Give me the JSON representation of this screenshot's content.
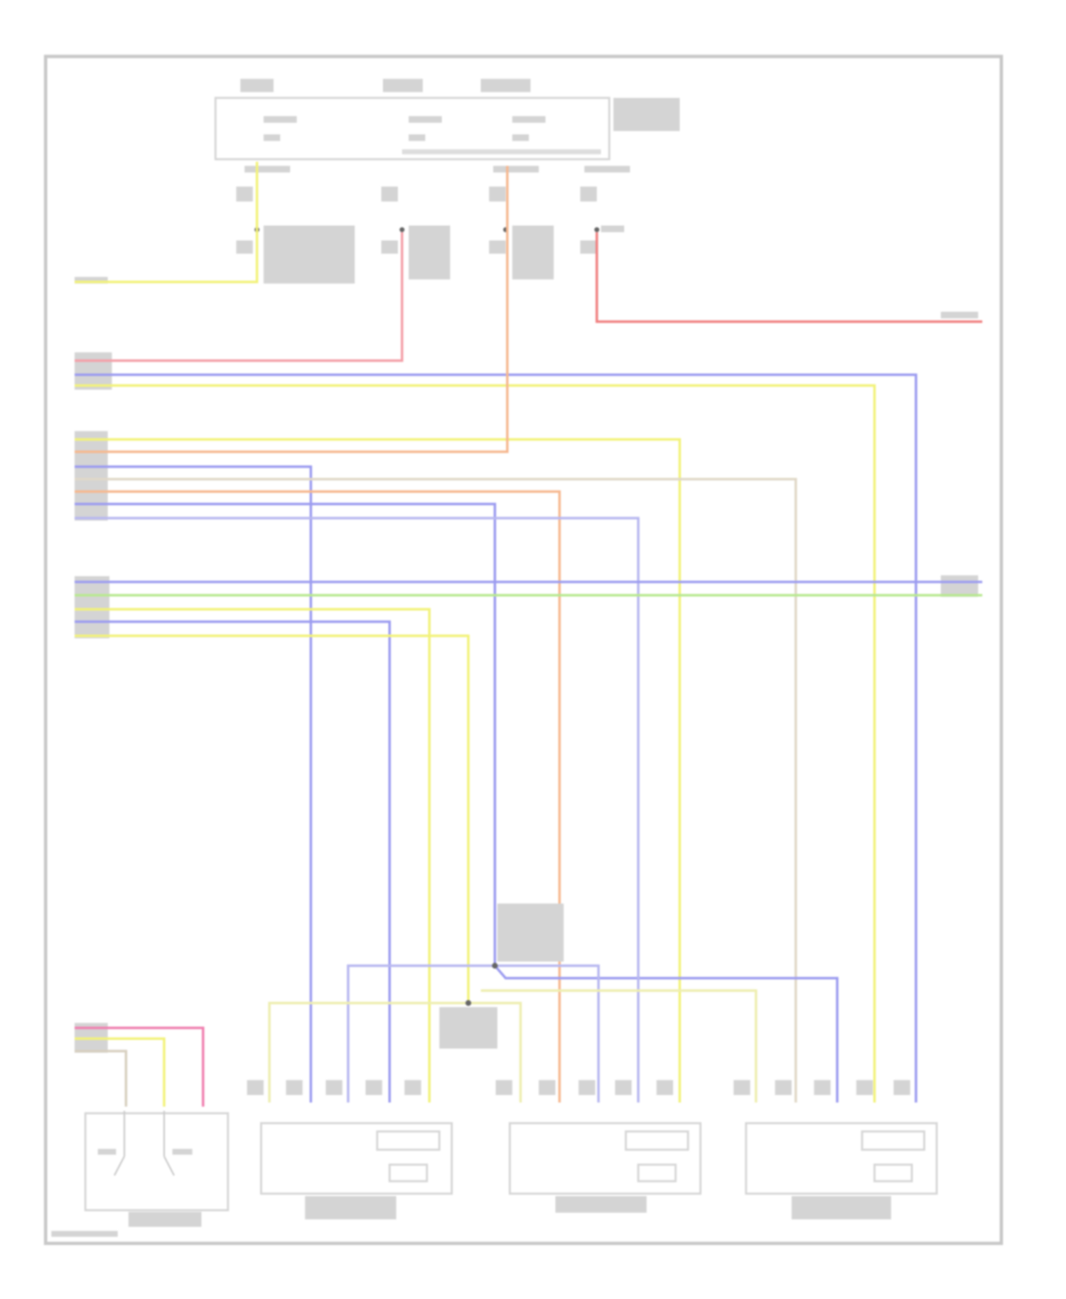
{
  "diagram": {
    "type": "wiring-diagram",
    "text_legible": false,
    "wire_colors": {
      "yellow": "#f2f27a",
      "pink": "#f4a0a8",
      "red": "#f08080",
      "blue": "#9c9cf0",
      "light_blue": "#b8b8f0",
      "orange": "#f6b890",
      "green": "#b8e890",
      "gray": "#d8d0c0",
      "magenta": "#f080b0"
    },
    "frame_color": "#c8c8c8",
    "component_outline_color": "#d6d6d6"
  }
}
